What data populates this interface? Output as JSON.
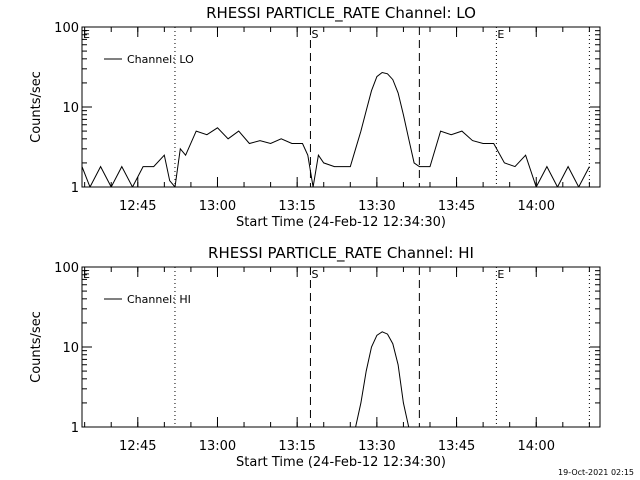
{
  "chart_data": [
    {
      "type": "line",
      "title": "RHESSI PARTICLE_RATE Channel: LO",
      "xlabel": "Start Time (24-Feb-12 12:34:30)",
      "ylabel": "Counts/sec",
      "y_scale": "log",
      "ylim": [
        1,
        100
      ],
      "xlim": [
        "12:34:30",
        "14:12:00"
      ],
      "x_tick_labels": [
        "12:45",
        "13:00",
        "13:15",
        "13:30",
        "13:45",
        "14:00"
      ],
      "y_tick_labels": [
        "1",
        "10",
        "100"
      ],
      "legend": "top-left",
      "grid": false,
      "markers": [
        {
          "time": "12:52:00",
          "style": "dotted",
          "label": ""
        },
        {
          "time": "13:17:30",
          "style": "dashed",
          "label": "S"
        },
        {
          "time": "13:38:00",
          "style": "dashed",
          "label": ""
        },
        {
          "time": "13:52:30",
          "style": "dotted",
          "label": "E"
        },
        {
          "time": "14:10:00",
          "style": "dotted",
          "label": ""
        }
      ],
      "edge_labels": [
        "E"
      ],
      "series": [
        {
          "name": "Channel: LO",
          "x": [
            "12:34:30",
            "12:36:00",
            "12:38:00",
            "12:40:00",
            "12:42:00",
            "12:44:00",
            "12:46:00",
            "12:48:00",
            "12:50:00",
            "12:51:00",
            "12:52:00",
            "12:53:00",
            "12:54:00",
            "12:56:00",
            "12:58:00",
            "13:00:00",
            "13:02:00",
            "13:04:00",
            "13:06:00",
            "13:08:00",
            "13:10:00",
            "13:12:00",
            "13:14:00",
            "13:16:00",
            "13:17:00",
            "13:18:00",
            "13:19:00",
            "13:20:00",
            "13:22:00",
            "13:24:00",
            "13:25:00",
            "13:26:00",
            "13:27:00",
            "13:28:00",
            "13:29:00",
            "13:30:00",
            "13:31:00",
            "13:32:00",
            "13:33:00",
            "13:34:00",
            "13:35:00",
            "13:36:00",
            "13:37:00",
            "13:38:00",
            "13:40:00",
            "13:42:00",
            "13:44:00",
            "13:46:00",
            "13:48:00",
            "13:50:00",
            "13:52:00",
            "13:54:00",
            "13:56:00",
            "13:58:00",
            "14:00:00",
            "14:02:00",
            "14:04:00",
            "14:06:00",
            "14:08:00",
            "14:10:00"
          ],
          "y": [
            1.8,
            1.0,
            1.8,
            1.0,
            1.8,
            1.0,
            1.8,
            1.8,
            2.5,
            1.2,
            1.0,
            3.0,
            2.5,
            5.0,
            4.5,
            5.5,
            4.0,
            5.0,
            3.5,
            3.8,
            3.5,
            4.0,
            3.5,
            3.5,
            2.5,
            1.0,
            2.5,
            2.0,
            1.8,
            1.8,
            1.8,
            3.0,
            5.0,
            9.0,
            16.0,
            24.0,
            27.0,
            26.0,
            22.0,
            15.0,
            8.0,
            4.0,
            2.0,
            1.8,
            1.8,
            5.0,
            4.5,
            5.0,
            3.8,
            3.5,
            3.5,
            2.0,
            1.8,
            2.5,
            1.0,
            1.8,
            1.0,
            1.8,
            1.0,
            1.8
          ]
        }
      ]
    },
    {
      "type": "line",
      "title": "RHESSI PARTICLE_RATE Channel: HI",
      "xlabel": "Start Time (24-Feb-12 12:34:30)",
      "ylabel": "Counts/sec",
      "y_scale": "log",
      "ylim": [
        1,
        100
      ],
      "xlim": [
        "12:34:30",
        "14:12:00"
      ],
      "x_tick_labels": [
        "12:45",
        "13:00",
        "13:15",
        "13:30",
        "13:45",
        "14:00"
      ],
      "y_tick_labels": [
        "1",
        "10",
        "100"
      ],
      "legend": "top-left",
      "grid": false,
      "markers": [
        {
          "time": "12:52:00",
          "style": "dotted",
          "label": ""
        },
        {
          "time": "13:17:30",
          "style": "dashed",
          "label": "S"
        },
        {
          "time": "13:38:00",
          "style": "dashed",
          "label": ""
        },
        {
          "time": "13:52:30",
          "style": "dotted",
          "label": "E"
        },
        {
          "time": "14:10:00",
          "style": "dotted",
          "label": ""
        }
      ],
      "edge_labels": [
        "E"
      ],
      "series": [
        {
          "name": "Channel: HI",
          "x": [
            "13:26:00",
            "13:27:00",
            "13:28:00",
            "13:29:00",
            "13:30:00",
            "13:31:00",
            "13:32:00",
            "13:33:00",
            "13:34:00",
            "13:35:00",
            "13:36:00"
          ],
          "y": [
            1.0,
            2.0,
            5.0,
            10.0,
            14.0,
            15.5,
            14.5,
            11.0,
            6.0,
            2.0,
            1.0
          ]
        }
      ]
    }
  ],
  "footer": {
    "timestamp": "19-Oct-2021 02:15"
  }
}
